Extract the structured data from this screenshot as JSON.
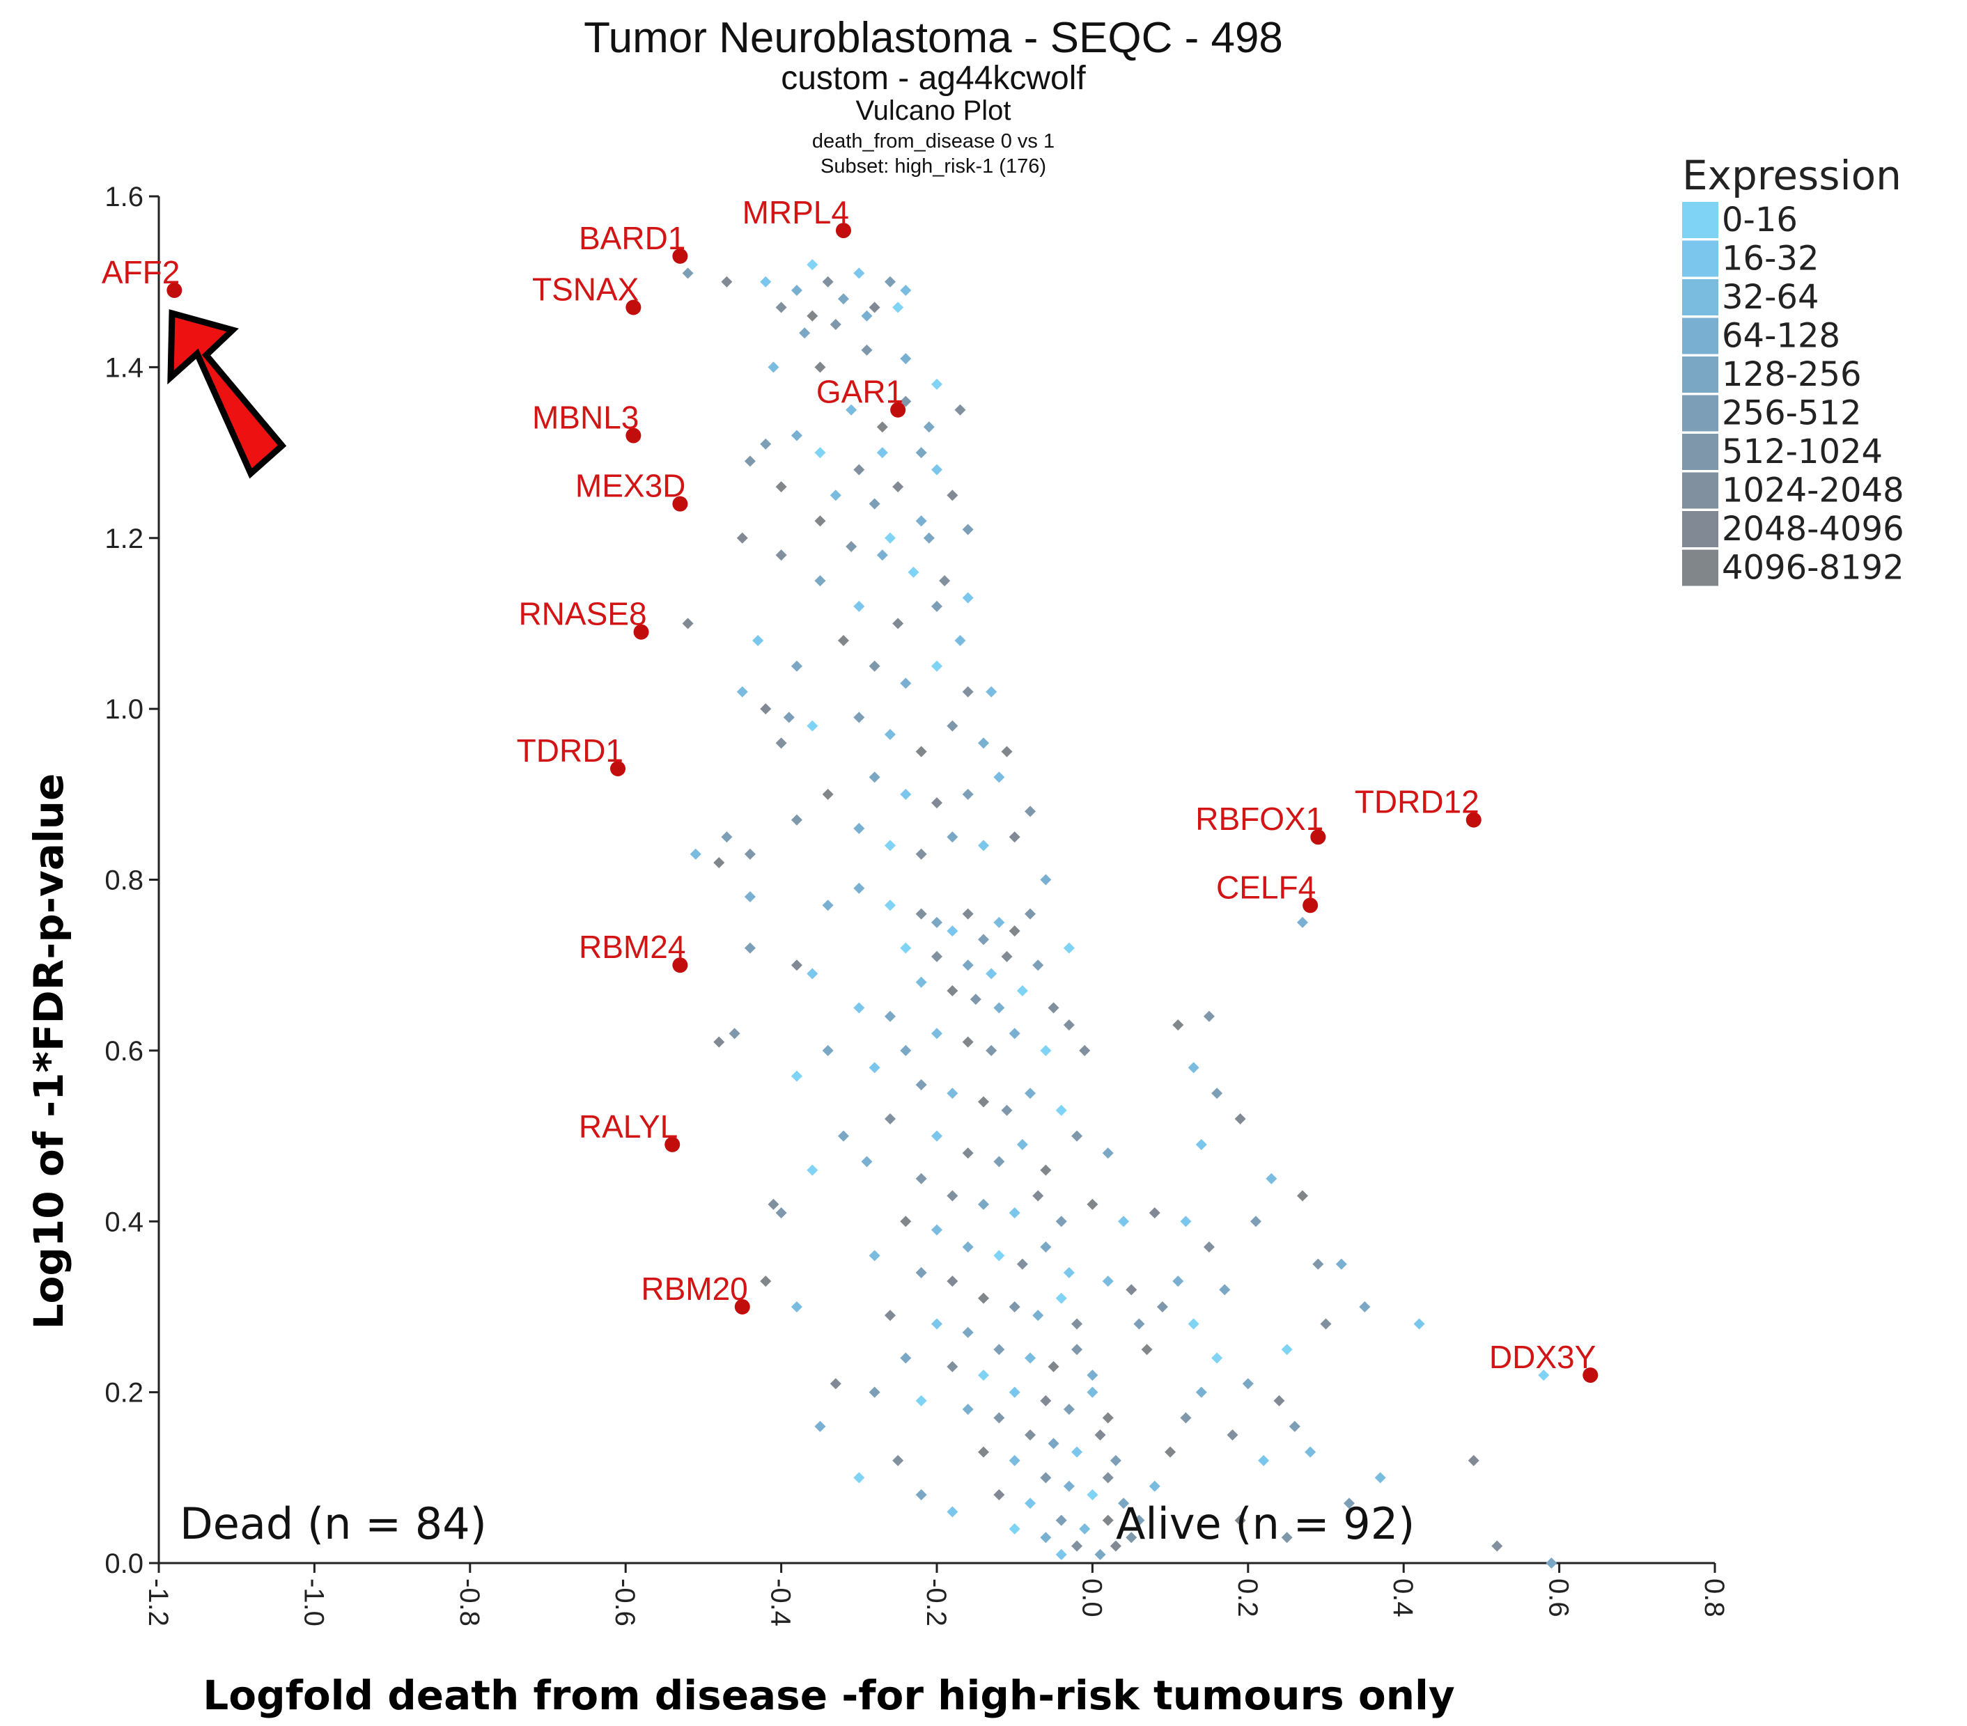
{
  "chart_data": {
    "type": "scatter",
    "title": "Tumor Neuroblastoma  - SEQC - 498",
    "subtitle_lines": [
      "custom - ag44kcwolf",
      "Vulcano Plot",
      "death_from_disease 0 vs 1",
      "Subset: high_risk-1 (176)"
    ],
    "xlabel": "Logfold death from disease -for high-risk tumours only",
    "ylabel": "Log10 of -1*FDR-p-value",
    "xlim": [
      -1.2,
      0.8
    ],
    "ylim": [
      0.0,
      1.6
    ],
    "x_ticks": [
      "-1.2",
      "-1.0",
      "-0.8",
      "-0.6",
      "-0.4",
      "-0.2",
      "0.0",
      "0.2",
      "0.4",
      "0.6",
      "0.8"
    ],
    "y_ticks": [
      "0.0",
      "0.2",
      "0.4",
      "0.6",
      "0.8",
      "1.0",
      "1.2",
      "1.4",
      "1.6"
    ],
    "group_labels": {
      "left": "Dead (n = 84)",
      "right": "Alive (n = 92)"
    },
    "legend": {
      "title": "Expression",
      "position": "top-right",
      "entries": [
        {
          "label": "0-16",
          "color": "#7fd3f5"
        },
        {
          "label": "16-32",
          "color": "#7bc6ec"
        },
        {
          "label": "32-64",
          "color": "#7abbe0"
        },
        {
          "label": "64-128",
          "color": "#79b0d2"
        },
        {
          "label": "128-256",
          "color": "#7aa7c4"
        },
        {
          "label": "256-512",
          "color": "#7c9fb7"
        },
        {
          "label": "512-1024",
          "color": "#7e97aa"
        },
        {
          "label": "1024-2048",
          "color": "#80909e"
        },
        {
          "label": "2048-4096",
          "color": "#818a94"
        },
        {
          "label": "4096-8192",
          "color": "#81868b"
        }
      ]
    },
    "highlighted_genes": [
      {
        "name": "AFF2",
        "x": -1.18,
        "y": 1.49
      },
      {
        "name": "BARD1",
        "x": -0.53,
        "y": 1.53
      },
      {
        "name": "MRPL4",
        "x": -0.32,
        "y": 1.56
      },
      {
        "name": "TSNAX",
        "x": -0.59,
        "y": 1.47
      },
      {
        "name": "GAR1",
        "x": -0.25,
        "y": 1.35
      },
      {
        "name": "MBNL3",
        "x": -0.59,
        "y": 1.32
      },
      {
        "name": "MEX3D",
        "x": -0.53,
        "y": 1.24
      },
      {
        "name": "RNASE8",
        "x": -0.58,
        "y": 1.09
      },
      {
        "name": "TDRD1",
        "x": -0.61,
        "y": 0.93
      },
      {
        "name": "RBFOX1",
        "x": 0.29,
        "y": 0.85
      },
      {
        "name": "TDRD12",
        "x": 0.49,
        "y": 0.87
      },
      {
        "name": "CELF4",
        "x": 0.28,
        "y": 0.77
      },
      {
        "name": "RBM24",
        "x": -0.53,
        "y": 0.7
      },
      {
        "name": "RALYL",
        "x": -0.54,
        "y": 0.49
      },
      {
        "name": "RBM20",
        "x": -0.45,
        "y": 0.3
      },
      {
        "name": "DDX3Y",
        "x": 0.64,
        "y": 0.22
      }
    ],
    "background_points": [
      [
        -0.38,
        1.49
      ],
      [
        -0.36,
        1.52
      ],
      [
        -0.34,
        1.5
      ],
      [
        -0.32,
        1.48
      ],
      [
        -0.3,
        1.51
      ],
      [
        -0.28,
        1.47
      ],
      [
        -0.26,
        1.5
      ],
      [
        -0.24,
        1.49
      ],
      [
        -0.36,
        1.46
      ],
      [
        -0.33,
        1.45
      ],
      [
        -0.29,
        1.46
      ],
      [
        -0.25,
        1.47
      ],
      [
        -0.4,
        1.47
      ],
      [
        -0.37,
        1.44
      ],
      [
        -0.42,
        1.5
      ],
      [
        -0.47,
        1.5
      ],
      [
        -0.52,
        1.51
      ],
      [
        -0.31,
        1.35
      ],
      [
        -0.27,
        1.33
      ],
      [
        -0.24,
        1.36
      ],
      [
        -0.38,
        1.32
      ],
      [
        -0.35,
        1.3
      ],
      [
        -0.3,
        1.28
      ],
      [
        -0.22,
        1.3
      ],
      [
        -0.2,
        1.28
      ],
      [
        -0.18,
        1.25
      ],
      [
        -0.28,
        1.24
      ],
      [
        -0.33,
        1.25
      ],
      [
        -0.4,
        1.26
      ],
      [
        -0.44,
        1.29
      ],
      [
        -0.22,
        1.22
      ],
      [
        -0.26,
        1.2
      ],
      [
        -0.4,
        1.18
      ],
      [
        -0.35,
        1.15
      ],
      [
        -0.3,
        1.12
      ],
      [
        -0.25,
        1.1
      ],
      [
        -0.2,
        1.12
      ],
      [
        -0.17,
        1.08
      ],
      [
        -0.32,
        1.08
      ],
      [
        -0.28,
        1.05
      ],
      [
        -0.24,
        1.03
      ],
      [
        -0.2,
        1.05
      ],
      [
        -0.16,
        1.02
      ],
      [
        -0.38,
        1.05
      ],
      [
        -0.43,
        1.08
      ],
      [
        -0.52,
        1.1
      ],
      [
        -0.3,
        0.99
      ],
      [
        -0.26,
        0.97
      ],
      [
        -0.22,
        0.95
      ],
      [
        -0.18,
        0.98
      ],
      [
        -0.14,
        0.96
      ],
      [
        -0.36,
        0.98
      ],
      [
        -0.4,
        0.96
      ],
      [
        -0.28,
        0.92
      ],
      [
        -0.24,
        0.9
      ],
      [
        -0.2,
        0.89
      ],
      [
        -0.16,
        0.9
      ],
      [
        -0.12,
        0.92
      ],
      [
        -0.34,
        0.9
      ],
      [
        -0.38,
        0.87
      ],
      [
        -0.3,
        0.86
      ],
      [
        -0.26,
        0.84
      ],
      [
        -0.22,
        0.83
      ],
      [
        -0.18,
        0.85
      ],
      [
        -0.14,
        0.84
      ],
      [
        -0.1,
        0.85
      ],
      [
        -0.47,
        0.85
      ],
      [
        -0.51,
        0.83
      ],
      [
        -0.48,
        0.82
      ],
      [
        -0.44,
        0.83
      ],
      [
        -0.3,
        0.79
      ],
      [
        -0.26,
        0.77
      ],
      [
        -0.22,
        0.76
      ],
      [
        -0.2,
        0.75
      ],
      [
        -0.18,
        0.74
      ],
      [
        -0.16,
        0.76
      ],
      [
        -0.14,
        0.73
      ],
      [
        -0.12,
        0.75
      ],
      [
        -0.1,
        0.74
      ],
      [
        -0.08,
        0.76
      ],
      [
        -0.34,
        0.77
      ],
      [
        -0.24,
        0.72
      ],
      [
        -0.2,
        0.71
      ],
      [
        -0.16,
        0.7
      ],
      [
        -0.13,
        0.69
      ],
      [
        -0.11,
        0.71
      ],
      [
        -0.07,
        0.7
      ],
      [
        -0.22,
        0.68
      ],
      [
        -0.18,
        0.67
      ],
      [
        -0.15,
        0.66
      ],
      [
        -0.12,
        0.65
      ],
      [
        -0.09,
        0.67
      ],
      [
        -0.05,
        0.65
      ],
      [
        -0.26,
        0.64
      ],
      [
        -0.3,
        0.65
      ],
      [
        -0.38,
        0.7
      ],
      [
        -0.44,
        0.72
      ],
      [
        -0.2,
        0.62
      ],
      [
        -0.16,
        0.61
      ],
      [
        -0.13,
        0.6
      ],
      [
        -0.1,
        0.62
      ],
      [
        -0.06,
        0.6
      ],
      [
        -0.03,
        0.63
      ],
      [
        -0.24,
        0.6
      ],
      [
        -0.28,
        0.58
      ],
      [
        -0.48,
        0.61
      ],
      [
        -0.22,
        0.56
      ],
      [
        -0.18,
        0.55
      ],
      [
        -0.14,
        0.54
      ],
      [
        -0.11,
        0.53
      ],
      [
        -0.08,
        0.55
      ],
      [
        -0.04,
        0.53
      ],
      [
        -0.26,
        0.52
      ],
      [
        -0.32,
        0.5
      ],
      [
        -0.2,
        0.5
      ],
      [
        -0.16,
        0.48
      ],
      [
        -0.12,
        0.47
      ],
      [
        -0.09,
        0.49
      ],
      [
        -0.06,
        0.46
      ],
      [
        -0.22,
        0.45
      ],
      [
        -0.29,
        0.47
      ],
      [
        -0.36,
        0.46
      ],
      [
        -0.18,
        0.43
      ],
      [
        -0.14,
        0.42
      ],
      [
        -0.1,
        0.41
      ],
      [
        -0.07,
        0.43
      ],
      [
        -0.04,
        0.4
      ],
      [
        -0.2,
        0.39
      ],
      [
        -0.24,
        0.4
      ],
      [
        -0.4,
        0.41
      ],
      [
        -0.16,
        0.37
      ],
      [
        -0.12,
        0.36
      ],
      [
        -0.09,
        0.35
      ],
      [
        -0.06,
        0.37
      ],
      [
        -0.03,
        0.34
      ],
      [
        -0.18,
        0.33
      ],
      [
        -0.22,
        0.34
      ],
      [
        -0.28,
        0.36
      ],
      [
        -0.14,
        0.31
      ],
      [
        -0.1,
        0.3
      ],
      [
        -0.07,
        0.29
      ],
      [
        -0.04,
        0.31
      ],
      [
        -0.02,
        0.28
      ],
      [
        -0.16,
        0.27
      ],
      [
        -0.2,
        0.28
      ],
      [
        -0.26,
        0.29
      ],
      [
        -0.12,
        0.25
      ],
      [
        -0.08,
        0.24
      ],
      [
        -0.05,
        0.23
      ],
      [
        -0.02,
        0.25
      ],
      [
        0.0,
        0.22
      ],
      [
        -0.14,
        0.22
      ],
      [
        -0.18,
        0.23
      ],
      [
        -0.24,
        0.24
      ],
      [
        -0.1,
        0.2
      ],
      [
        -0.06,
        0.19
      ],
      [
        -0.03,
        0.18
      ],
      [
        0.0,
        0.2
      ],
      [
        0.02,
        0.17
      ],
      [
        -0.12,
        0.17
      ],
      [
        -0.16,
        0.18
      ],
      [
        -0.22,
        0.19
      ],
      [
        -0.08,
        0.15
      ],
      [
        -0.05,
        0.14
      ],
      [
        -0.02,
        0.13
      ],
      [
        0.01,
        0.15
      ],
      [
        0.03,
        0.12
      ],
      [
        -0.1,
        0.12
      ],
      [
        -0.14,
        0.13
      ],
      [
        -0.06,
        0.1
      ],
      [
        -0.03,
        0.09
      ],
      [
        0.0,
        0.08
      ],
      [
        0.02,
        0.1
      ],
      [
        0.04,
        0.07
      ],
      [
        -0.08,
        0.07
      ],
      [
        -0.12,
        0.08
      ],
      [
        -0.04,
        0.05
      ],
      [
        -0.01,
        0.04
      ],
      [
        0.02,
        0.05
      ],
      [
        0.05,
        0.03
      ],
      [
        -0.06,
        0.03
      ],
      [
        -0.1,
        0.04
      ],
      [
        -0.02,
        0.02
      ],
      [
        0.01,
        0.01
      ],
      [
        -0.04,
        0.01
      ],
      [
        0.03,
        0.02
      ],
      [
        0.06,
        0.05
      ],
      [
        0.08,
        0.09
      ],
      [
        0.1,
        0.13
      ],
      [
        0.12,
        0.17
      ],
      [
        0.14,
        0.2
      ],
      [
        0.16,
        0.24
      ],
      [
        0.18,
        0.15
      ],
      [
        0.2,
        0.21
      ],
      [
        0.22,
        0.12
      ],
      [
        0.24,
        0.19
      ],
      [
        0.26,
        0.16
      ],
      [
        0.28,
        0.13
      ],
      [
        0.07,
        0.25
      ],
      [
        0.09,
        0.3
      ],
      [
        0.11,
        0.33
      ],
      [
        0.13,
        0.28
      ],
      [
        0.15,
        0.37
      ],
      [
        0.17,
        0.32
      ],
      [
        0.12,
        0.4
      ],
      [
        0.08,
        0.41
      ],
      [
        0.21,
        0.4
      ],
      [
        0.23,
        0.45
      ],
      [
        0.27,
        0.43
      ],
      [
        0.29,
        0.35
      ],
      [
        0.32,
        0.35
      ],
      [
        0.25,
        0.25
      ],
      [
        0.3,
        0.28
      ],
      [
        0.35,
        0.3
      ],
      [
        0.14,
        0.49
      ],
      [
        0.19,
        0.52
      ],
      [
        0.16,
        0.55
      ],
      [
        0.13,
        0.58
      ],
      [
        0.11,
        0.63
      ],
      [
        0.15,
        0.64
      ],
      [
        0.27,
        0.75
      ],
      [
        0.58,
        0.22
      ],
      [
        0.52,
        0.02
      ],
      [
        0.59,
        0.0
      ],
      [
        0.42,
        0.28
      ],
      [
        0.49,
        0.12
      ],
      [
        0.33,
        0.07
      ],
      [
        0.37,
        0.1
      ],
      [
        0.19,
        0.05
      ],
      [
        0.25,
        0.03
      ],
      [
        -0.35,
        0.16
      ],
      [
        -0.3,
        0.1
      ],
      [
        -0.25,
        0.12
      ],
      [
        -0.22,
        0.08
      ],
      [
        -0.18,
        0.06
      ],
      [
        -0.33,
        0.21
      ],
      [
        -0.28,
        0.2
      ],
      [
        -0.38,
        0.3
      ],
      [
        -0.42,
        0.33
      ],
      [
        -0.46,
        0.62
      ],
      [
        -0.44,
        0.78
      ],
      [
        -0.38,
        0.57
      ],
      [
        -0.41,
        0.42
      ],
      [
        -0.34,
        0.6
      ],
      [
        -0.36,
        0.69
      ],
      [
        -0.42,
        1.0
      ],
      [
        -0.39,
        0.99
      ],
      [
        -0.45,
        1.02
      ],
      [
        -0.35,
        1.22
      ],
      [
        -0.31,
        1.19
      ],
      [
        -0.27,
        1.18
      ],
      [
        -0.23,
        1.16
      ],
      [
        -0.19,
        1.15
      ],
      [
        -0.21,
        1.2
      ],
      [
        -0.16,
        1.13
      ],
      [
        -0.45,
        1.2
      ],
      [
        -0.42,
        1.31
      ],
      [
        -0.41,
        1.4
      ],
      [
        -0.35,
        1.4
      ],
      [
        -0.29,
        1.42
      ],
      [
        -0.24,
        1.41
      ],
      [
        -0.2,
        1.38
      ],
      [
        -0.17,
        1.35
      ],
      [
        -0.21,
        1.33
      ],
      [
        -0.27,
        1.3
      ],
      [
        -0.25,
        1.26
      ],
      [
        -0.16,
        1.21
      ],
      [
        -0.13,
        1.02
      ],
      [
        -0.11,
        0.95
      ],
      [
        -0.08,
        0.88
      ],
      [
        -0.06,
        0.8
      ],
      [
        -0.03,
        0.72
      ],
      [
        -0.01,
        0.6
      ],
      [
        0.02,
        0.48
      ],
      [
        0.04,
        0.4
      ],
      [
        0.05,
        0.32
      ],
      [
        0.06,
        0.28
      ],
      [
        0.02,
        0.33
      ],
      [
        0.0,
        0.42
      ],
      [
        -0.02,
        0.5
      ]
    ]
  }
}
